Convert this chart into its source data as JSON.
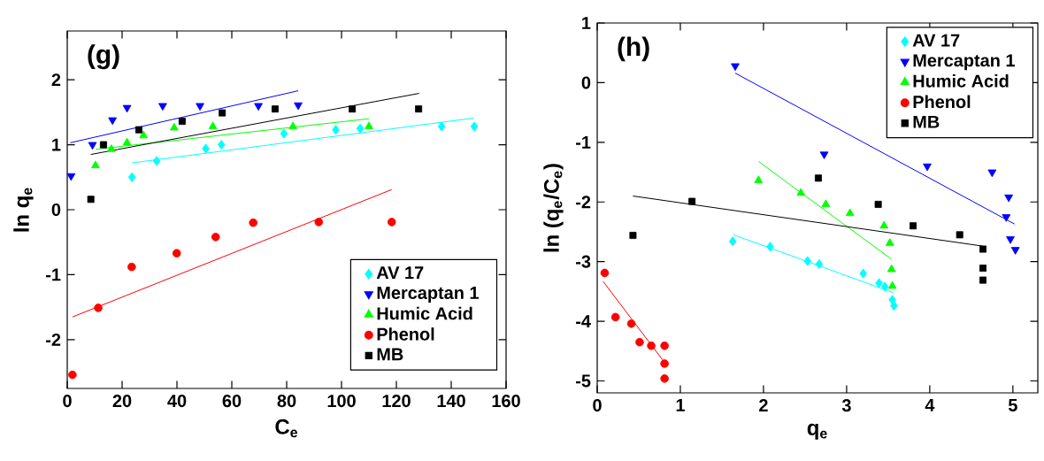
{
  "chart_data": [
    {
      "type": "scatter",
      "title": "(g)",
      "xlabel": "C$_{e}$",
      "ylabel": "ln q$_{e}$",
      "xlim": [
        0,
        160
      ],
      "ylim": [
        -2.75,
        2.75
      ],
      "xticks": [
        0,
        20,
        40,
        60,
        80,
        100,
        120,
        140,
        160
      ],
      "yticks": [
        -2,
        -1,
        0,
        1,
        2
      ],
      "legend": "bottom right",
      "grid": false,
      "series": [
        {
          "name": "AV 17",
          "color": "#00ffff",
          "marker": "diamond",
          "x": [
            23.6,
            32.6,
            50.5,
            56.2,
            79.0,
            97.9,
            106.8,
            136.5,
            148.4
          ],
          "values": [
            0.5,
            0.75,
            0.94,
            1.0,
            1.17,
            1.23,
            1.25,
            1.28,
            1.28
          ]
        },
        {
          "name": "Mercaptan 1",
          "color": "#0000ff",
          "marker": "triangle-down",
          "x": [
            1.4,
            9.2,
            16.5,
            21.8,
            34.8,
            48.4,
            69.7,
            84.2
          ],
          "values": [
            0.52,
            1.0,
            1.38,
            1.57,
            1.6,
            1.6,
            1.6,
            1.61
          ]
        },
        {
          "name": "Humic Acid",
          "color": "#00ff00",
          "marker": "triangle",
          "x": [
            10.3,
            16.1,
            21.8,
            27.8,
            39.0,
            53.1,
            82.3,
            110.0
          ],
          "values": [
            0.68,
            0.93,
            1.03,
            1.14,
            1.26,
            1.28,
            1.28,
            1.28
          ]
        },
        {
          "name": "Phenol",
          "color": "#ff0000",
          "marker": "circle",
          "x": [
            1.9,
            11.3,
            23.5,
            39.9,
            54.1,
            67.8,
            91.7,
            118.3
          ],
          "values": [
            -2.54,
            -1.51,
            -0.88,
            -0.67,
            -0.42,
            -0.2,
            -0.19,
            -0.19
          ]
        },
        {
          "name": "MB",
          "color": "#000000",
          "marker": "square",
          "x": [
            8.6,
            13.2,
            26.1,
            41.9,
            56.5,
            75.8,
            103.9,
            128.1
          ],
          "values": [
            0.16,
            1.0,
            1.23,
            1.36,
            1.49,
            1.55,
            1.55,
            1.55
          ]
        },
        {
          "type": "line",
          "color": "#00ffff",
          "x": [
            23.6,
            148.2
          ],
          "values": [
            0.72,
            1.41
          ]
        },
        {
          "type": "line",
          "color": "#0000ff",
          "x": [
            1.1,
            84.2
          ],
          "values": [
            1.03,
            1.83
          ]
        },
        {
          "type": "line",
          "color": "#00ff00",
          "x": [
            10.4,
            110.0
          ],
          "values": [
            0.93,
            1.4
          ]
        },
        {
          "type": "line",
          "color": "#ff0000",
          "x": [
            1.9,
            118.3
          ],
          "values": [
            -1.65,
            0.31
          ]
        },
        {
          "type": "line",
          "color": "#000000",
          "x": [
            8.6,
            128.3
          ],
          "values": [
            0.85,
            1.79
          ]
        }
      ]
    },
    {
      "type": "scatter",
      "title": "(h)",
      "xlabel": "q$_{e}$",
      "ylabel": "ln (q$_{e}$/C$_{e}$)",
      "xlim": [
        0,
        5.3
      ],
      "ylim": [
        -5.2,
        1
      ],
      "xticks": [
        0,
        1,
        2,
        3,
        4,
        5
      ],
      "yticks": [
        -5,
        -4,
        -3,
        -2,
        -1,
        0,
        1
      ],
      "legend": "top right",
      "grid": false,
      "series": [
        {
          "name": "AV 17",
          "color": "#00ffff",
          "marker": "diamond",
          "x": [
            1.63,
            2.08,
            2.53,
            2.67,
            3.2,
            3.39,
            3.46,
            3.55,
            3.57
          ],
          "values": [
            -2.66,
            -2.75,
            -2.99,
            -3.04,
            -3.2,
            -3.36,
            -3.42,
            -3.64,
            -3.74
          ]
        },
        {
          "name": "Mercaptan 1",
          "color": "#0000ff",
          "marker": "triangle-down",
          "x": [
            1.66,
            2.73,
            3.97,
            4.75,
            4.92,
            4.95,
            4.97,
            5.03
          ],
          "values": [
            0.28,
            -1.2,
            -1.4,
            -1.5,
            -2.25,
            -1.92,
            -2.62,
            -2.8
          ]
        },
        {
          "name": "Humic Acid",
          "color": "#00ff00",
          "marker": "triangle",
          "x": [
            1.94,
            2.45,
            2.75,
            3.04,
            3.45,
            3.52,
            3.54,
            3.55
          ],
          "values": [
            -1.64,
            -1.85,
            -2.04,
            -2.19,
            -2.4,
            -2.69,
            -3.13,
            -3.41
          ]
        },
        {
          "name": "Phenol",
          "color": "#ff0000",
          "marker": "circle",
          "x": [
            0.09,
            0.22,
            0.41,
            0.51,
            0.65,
            0.81,
            0.81,
            0.81
          ],
          "values": [
            -3.19,
            -3.93,
            -4.04,
            -4.35,
            -4.41,
            -4.41,
            -4.71,
            -4.96
          ]
        },
        {
          "name": "MB",
          "color": "#000000",
          "marker": "square",
          "x": [
            0.43,
            1.14,
            2.66,
            3.38,
            3.8,
            4.36,
            4.64,
            4.64,
            4.64
          ],
          "values": [
            -2.56,
            -1.99,
            -1.6,
            -2.04,
            -2.4,
            -2.55,
            -2.79,
            -3.11,
            -3.31
          ]
        },
        {
          "type": "line",
          "color": "#00ffff",
          "x": [
            1.64,
            3.56
          ],
          "values": [
            -2.55,
            -3.52
          ]
        },
        {
          "type": "line",
          "color": "#0000ff",
          "x": [
            1.66,
            5.02
          ],
          "values": [
            0.16,
            -2.37
          ]
        },
        {
          "type": "line",
          "color": "#00ff00",
          "x": [
            1.94,
            3.54
          ],
          "values": [
            -1.32,
            -2.96
          ]
        },
        {
          "type": "line",
          "color": "#ff0000",
          "x": [
            0.07,
            0.81
          ],
          "values": [
            -3.33,
            -4.69
          ]
        },
        {
          "type": "line",
          "color": "#000000",
          "x": [
            0.43,
            4.64
          ],
          "values": [
            -1.9,
            -2.74
          ]
        }
      ]
    }
  ]
}
